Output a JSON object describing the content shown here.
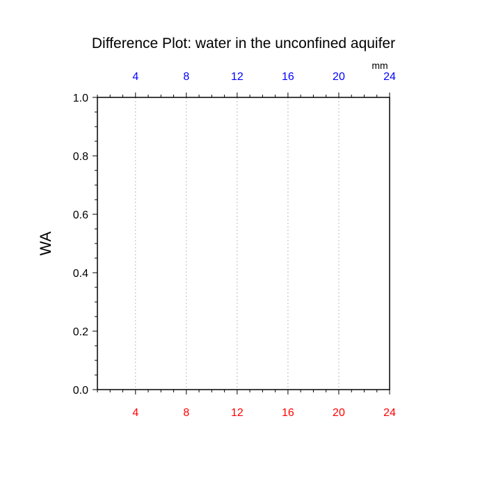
{
  "chart_data": {
    "type": "line",
    "title": "Difference Plot: water in the unconfined aquifer",
    "xlabel": "",
    "ylabel": "WA",
    "top_axis_unit": "mm",
    "xlim": [
      1,
      24
    ],
    "ylim": [
      0.0,
      1.0
    ],
    "x_ticks_bottom": [
      "4",
      "8",
      "12",
      "16",
      "20",
      "24"
    ],
    "x_ticks_top": [
      "4",
      "8",
      "12",
      "16",
      "20",
      "24"
    ],
    "y_ticks": [
      "0.0",
      "0.2",
      "0.4",
      "0.6",
      "0.8",
      "1.0"
    ],
    "x_tick_values": [
      4,
      8,
      12,
      16,
      20,
      24
    ],
    "y_tick_values": [
      0.0,
      0.2,
      0.4,
      0.6,
      0.8,
      1.0
    ],
    "vertical_gridlines": true,
    "series": [],
    "colors": {
      "bottom_ticks": "#ff0000",
      "top_ticks": "#0000ff",
      "frame": "#000000",
      "grid": "#bbbbbb"
    }
  }
}
